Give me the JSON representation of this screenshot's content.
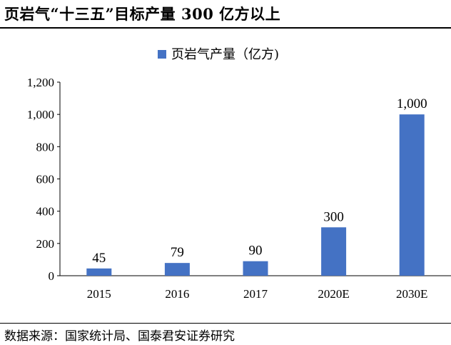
{
  "header": {
    "title": "页岩气“十三五”目标产量 300 亿方以上"
  },
  "footer": {
    "source": "数据来源：国家统计局、国泰君安证券研究"
  },
  "chart_data": {
    "type": "bar",
    "categories": [
      "2015",
      "2016",
      "2017",
      "2020E",
      "2030E"
    ],
    "series": [
      {
        "name": "页岩气产量（亿方)",
        "values": [
          45,
          79,
          90,
          300,
          1000
        ],
        "color": "#4472c4"
      }
    ],
    "data_labels": [
      "45",
      "79",
      "90",
      "300",
      "1,000"
    ],
    "yticks": [
      "0",
      "200",
      "400",
      "600",
      "800",
      "1,000",
      "1,200"
    ],
    "ylim": [
      0,
      1200
    ],
    "legend_position": "top-center",
    "grid": false
  }
}
